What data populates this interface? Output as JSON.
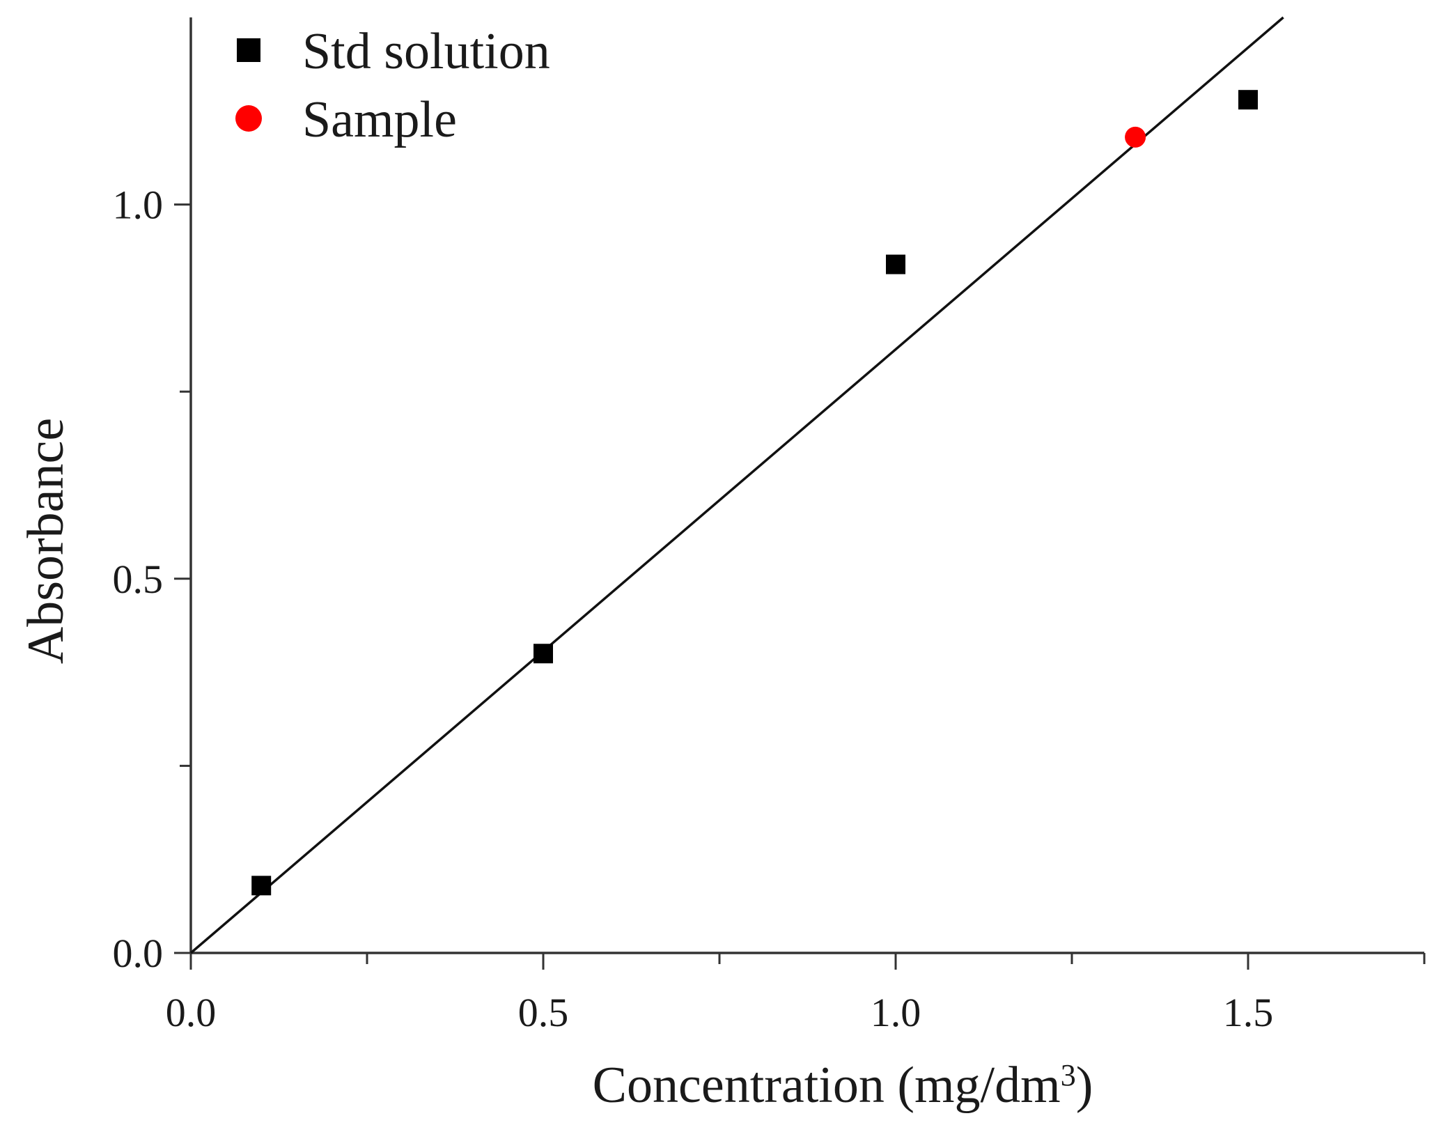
{
  "chart_data": {
    "type": "scatter",
    "title": "",
    "xlabel": "Concentration (mg/dm",
    "xlabel_superscript": "3",
    "xlabel_suffix": ")",
    "ylabel": "Absorbance",
    "xlim": [
      0,
      1.75
    ],
    "ylim": [
      0,
      1.25
    ],
    "x_ticks": [
      0.0,
      0.5,
      1.0,
      1.5
    ],
    "x_tick_labels": [
      "0.0",
      "0.5",
      "1.0",
      "1.5"
    ],
    "x_minor_ticks": [
      0.25,
      0.75,
      1.25,
      1.75
    ],
    "y_ticks": [
      0.0,
      0.5,
      1.0
    ],
    "y_tick_labels": [
      "0.0",
      "0.5",
      "1.0"
    ],
    "y_minor_ticks": [
      0.25,
      0.75
    ],
    "grid": false,
    "legend_position": "top-left",
    "series": [
      {
        "name": "Std solution",
        "marker": "square",
        "color": "#000000",
        "points": [
          {
            "x": 0.1,
            "y": 0.09
          },
          {
            "x": 0.5,
            "y": 0.4
          },
          {
            "x": 1.0,
            "y": 0.92
          },
          {
            "x": 1.5,
            "y": 1.14
          }
        ]
      },
      {
        "name": "Sample",
        "marker": "circle",
        "color": "#ff0000",
        "points": [
          {
            "x": 1.34,
            "y": 1.09
          }
        ]
      }
    ],
    "fit_line": {
      "color": "#111111",
      "points": [
        {
          "x": 0.0,
          "y": 0.0
        },
        {
          "x": 1.55,
          "y": 1.25
        }
      ]
    }
  }
}
